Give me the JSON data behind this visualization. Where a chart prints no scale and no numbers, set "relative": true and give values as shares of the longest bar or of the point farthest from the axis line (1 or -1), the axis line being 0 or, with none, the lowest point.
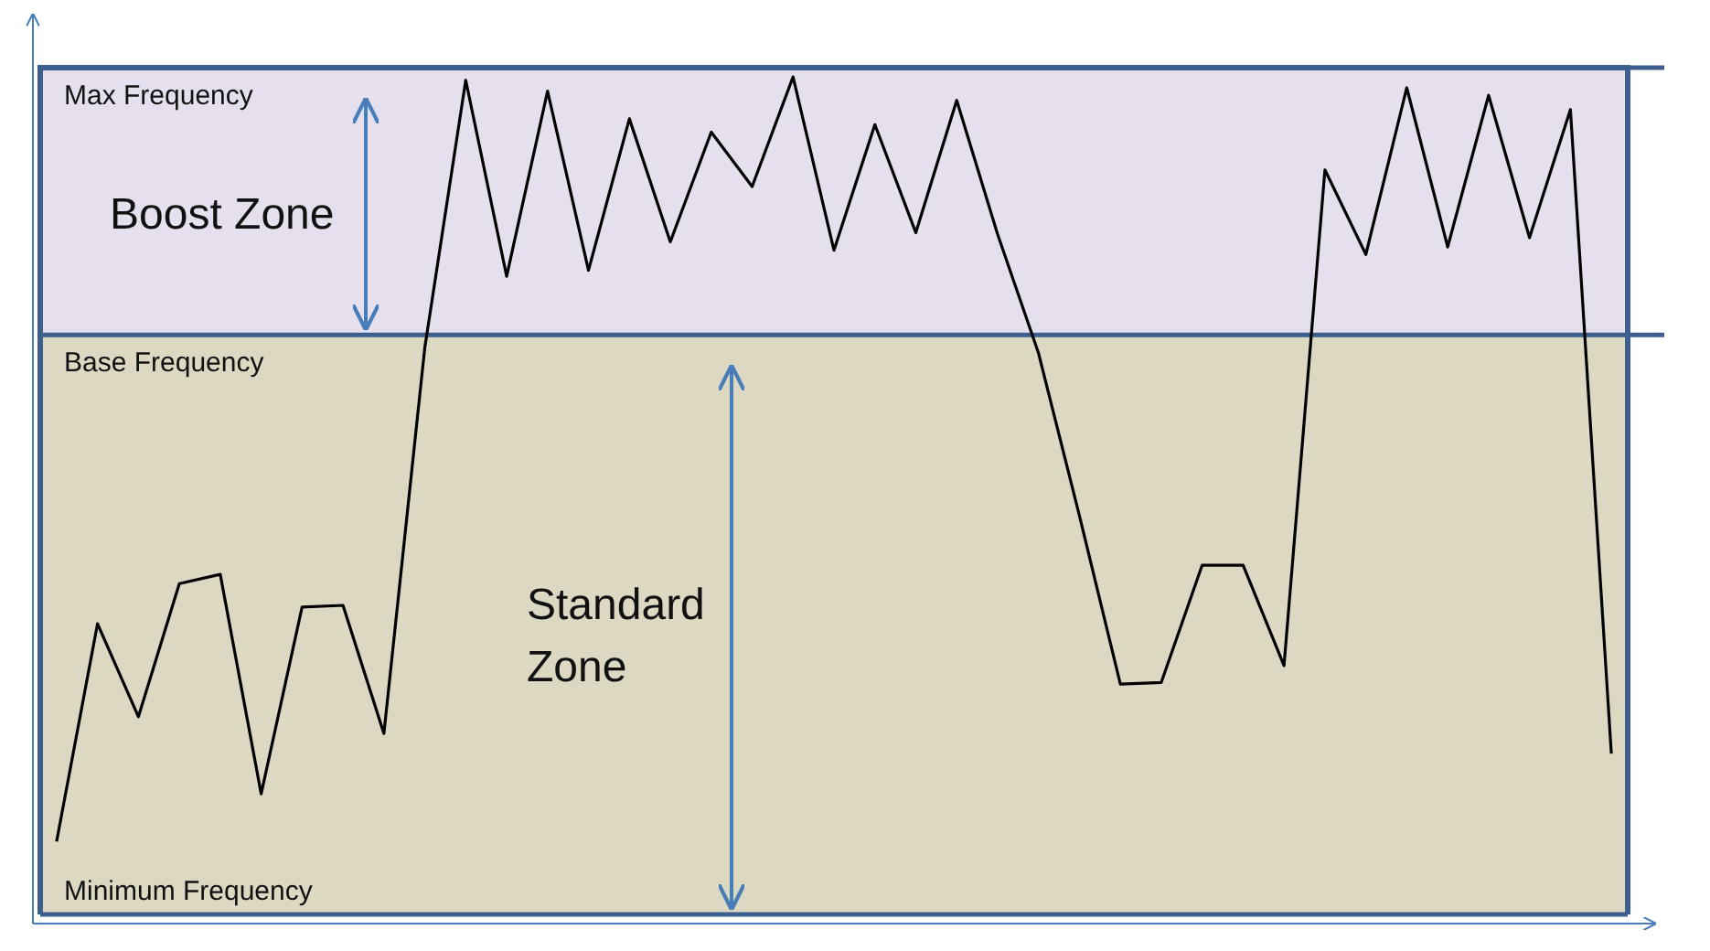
{
  "chart_data": {
    "type": "line",
    "relative": true,
    "marker": "none",
    "line_style": "solid",
    "categories": [
      null,
      null,
      null,
      null,
      null,
      null,
      null,
      null,
      null,
      null,
      null,
      null,
      null,
      null,
      null,
      null,
      null,
      null,
      null,
      null,
      null,
      null,
      null,
      null,
      null,
      null,
      null,
      null,
      null,
      null,
      null,
      null,
      null,
      null,
      null,
      null,
      null,
      null,
      null
    ],
    "ref_lines": [
      {
        "axis": "y",
        "value": 1.011,
        "label": "Max Frequency",
        "color": "#3c5f8f"
      },
      {
        "axis": "y",
        "value": 0.692,
        "label": "Base Frequency",
        "color": "#3c5f8f"
      },
      {
        "axis": "y",
        "value": 0,
        "label": "Minimum Frequency",
        "color": "#3c5f8f"
      }
    ],
    "series": [
      {
        "color": "#000000",
        "values": [
          0.087,
          0.347,
          0.236,
          0.395,
          0.406,
          0.144,
          0.367,
          0.369,
          0.216,
          0.677,
          0.996,
          0.762,
          0.983,
          0.769,
          0.95,
          0.803,
          0.934,
          0.869,
          1,
          0.793,
          0.943,
          0.814,
          0.972,
          0.812,
          0.67,
          0.476,
          0.275,
          0.277,
          0.417,
          0.417,
          0.297,
          0.889,
          0.788,
          0.987,
          0.797,
          0.978,
          0.808,
          0.961,
          0.192
        ]
      }
    ],
    "bands": [
      {
        "axis": "y",
        "from": 0.692,
        "to": 1.011,
        "label": "Boost Zone",
        "color": "#e6e0ee"
      },
      {
        "axis": "y",
        "from": 0,
        "to": 0.692,
        "label": "Standard Zone",
        "color": "#dcd8c2"
      }
    ]
  }
}
